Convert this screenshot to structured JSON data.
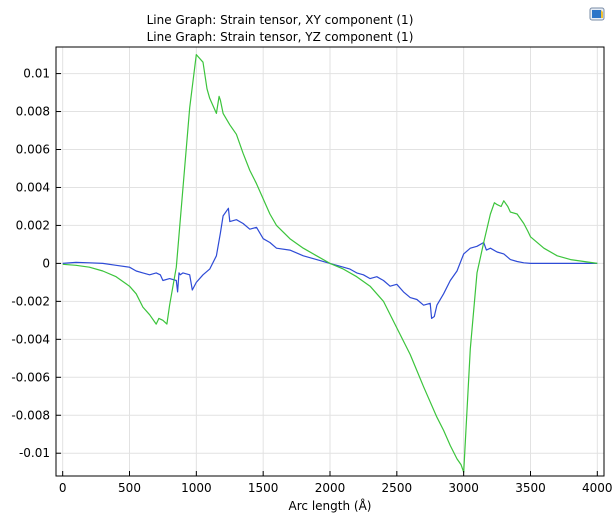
{
  "chart_data": {
    "type": "line",
    "legend": [
      "Line Graph: Strain tensor, XY component (1)",
      "Line Graph: Strain tensor, YZ component (1)"
    ],
    "xlabel": "Arc length (Å)",
    "ylabel": "",
    "xlim": [
      -50,
      4050
    ],
    "ylim": [
      -0.0112,
      0.0114
    ],
    "x_ticks": [
      0,
      500,
      1000,
      1500,
      2000,
      2500,
      3000,
      3500,
      4000
    ],
    "x_tick_labels": [
      "0",
      "500",
      "1000",
      "1500",
      "2000",
      "2500",
      "3000",
      "3500",
      "4000"
    ],
    "y_ticks": [
      0.01,
      0.008,
      0.006,
      0.004,
      0.002,
      0,
      -0.002,
      -0.004,
      -0.006,
      -0.008,
      -0.01
    ],
    "y_tick_labels": [
      "0.01",
      "0.008",
      "0.006",
      "0.004",
      "0.002",
      "0",
      "-0.002",
      "-0.004",
      "-0.006",
      "-0.008",
      "-0.01"
    ],
    "grid": true,
    "series": [
      {
        "name": "Line Graph: Strain tensor, XY component (1)",
        "color": "#2e4bd6",
        "x": [
          0,
          100,
          200,
          300,
          400,
          500,
          550,
          600,
          650,
          700,
          730,
          750,
          800,
          850,
          860,
          870,
          880,
          900,
          950,
          970,
          1000,
          1050,
          1100,
          1150,
          1180,
          1200,
          1240,
          1250,
          1300,
          1350,
          1400,
          1450,
          1500,
          1550,
          1600,
          1700,
          1800,
          1900,
          2000,
          2100,
          2150,
          2200,
          2250,
          2300,
          2350,
          2400,
          2450,
          2500,
          2550,
          2600,
          2650,
          2700,
          2750,
          2760,
          2780,
          2800,
          2850,
          2900,
          2950,
          3000,
          3050,
          3100,
          3150,
          3170,
          3200,
          3250,
          3300,
          3350,
          3400,
          3450,
          3500,
          3600,
          3700,
          3800,
          3900,
          4000
        ],
        "y": [
          0.0,
          5e-05,
          3e-05,
          0.0,
          -0.0001,
          -0.0002,
          -0.0004,
          -0.0005,
          -0.0006,
          -0.0005,
          -0.0006,
          -0.0009,
          -0.0008,
          -0.0009,
          -0.0015,
          -0.0005,
          -0.0006,
          -0.0005,
          -0.0006,
          -0.0014,
          -0.001,
          -0.0006,
          -0.0003,
          0.0004,
          0.0016,
          0.0025,
          0.0029,
          0.0022,
          0.0023,
          0.0021,
          0.0018,
          0.0019,
          0.0013,
          0.0011,
          0.0008,
          0.0007,
          0.0004,
          0.0002,
          0.0,
          -0.0002,
          -0.0003,
          -0.0005,
          -0.0006,
          -0.0008,
          -0.0007,
          -0.0009,
          -0.0012,
          -0.0011,
          -0.0015,
          -0.0018,
          -0.0019,
          -0.0022,
          -0.0021,
          -0.0029,
          -0.0028,
          -0.0022,
          -0.0016,
          -0.0009,
          -0.0004,
          0.0005,
          0.0008,
          0.0009,
          0.0011,
          0.0007,
          0.0008,
          0.0006,
          0.0005,
          0.0002,
          0.0001,
          3e-05,
          0.0,
          0.0,
          0.0,
          0.0,
          0.0,
          0.0
        ]
      },
      {
        "name": "Line Graph: Strain tensor, YZ component (1)",
        "color": "#3cc43c",
        "x": [
          0,
          100,
          200,
          300,
          400,
          500,
          550,
          600,
          650,
          700,
          720,
          750,
          780,
          800,
          850,
          900,
          950,
          1000,
          1050,
          1080,
          1100,
          1150,
          1170,
          1180,
          1200,
          1250,
          1300,
          1350,
          1400,
          1450,
          1500,
          1550,
          1600,
          1700,
          1800,
          1900,
          2000,
          2100,
          2200,
          2300,
          2400,
          2500,
          2600,
          2700,
          2800,
          2850,
          2900,
          2950,
          2980,
          3000,
          3050,
          3100,
          3150,
          3200,
          3230,
          3250,
          3280,
          3300,
          3330,
          3350,
          3400,
          3450,
          3480,
          3500,
          3600,
          3700,
          3800,
          3900,
          4000
        ],
        "y": [
          -5e-05,
          -0.0001,
          -0.0002,
          -0.0004,
          -0.0007,
          -0.0012,
          -0.0016,
          -0.0023,
          -0.0027,
          -0.0032,
          -0.0029,
          -0.003,
          -0.0032,
          -0.0022,
          -0.0002,
          0.004,
          0.0082,
          0.011,
          0.0106,
          0.0092,
          0.0087,
          0.0079,
          0.0088,
          0.0086,
          0.0079,
          0.0073,
          0.0068,
          0.0058,
          0.0049,
          0.0042,
          0.0034,
          0.0026,
          0.002,
          0.0013,
          0.0008,
          0.0004,
          0.0,
          -0.0003,
          -0.0007,
          -0.0012,
          -0.002,
          -0.0034,
          -0.0048,
          -0.0065,
          -0.0081,
          -0.0088,
          -0.0096,
          -0.0103,
          -0.0106,
          -0.011,
          -0.0045,
          -0.0005,
          0.0011,
          0.0026,
          0.0032,
          0.0031,
          0.003,
          0.0033,
          0.003,
          0.0027,
          0.0026,
          0.0021,
          0.0017,
          0.0014,
          0.0008,
          0.0004,
          0.0002,
          0.0001,
          0.0
        ]
      }
    ]
  }
}
